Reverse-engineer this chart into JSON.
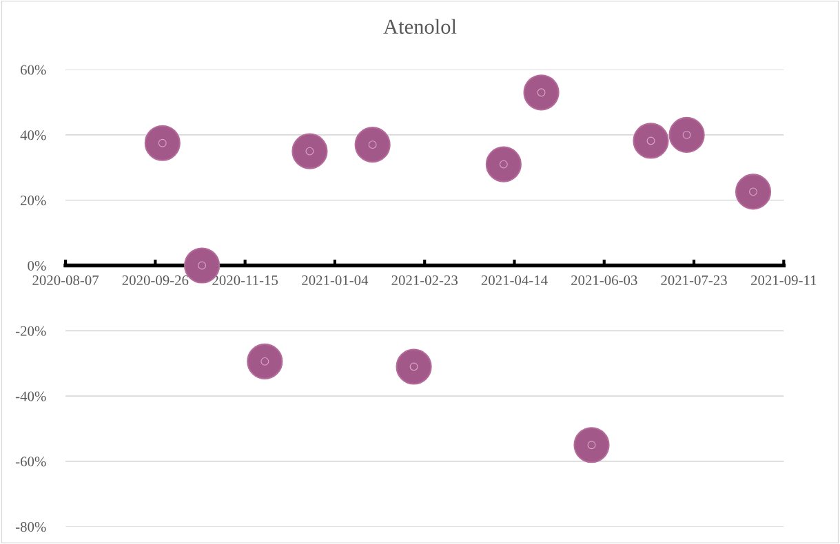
{
  "chart_data": {
    "type": "scatter",
    "title": "Atenolol",
    "x": [
      "2020-09-30",
      "2020-10-22",
      "2020-11-26",
      "2020-12-21",
      "2021-01-25",
      "2021-02-17",
      "2021-04-08",
      "2021-04-29",
      "2021-05-27",
      "2021-06-29",
      "2021-07-19",
      "2021-08-25"
    ],
    "series": [
      {
        "color": "#a3588a",
        "values": [
          37.5,
          0,
          -29.4,
          35,
          37,
          -31,
          31,
          53,
          -55,
          38.2,
          40,
          22.6
        ]
      }
    ],
    "xlim": [
      "2020-08-07",
      "2021-09-11"
    ],
    "xticks": [
      "2020-08-07",
      "2020-09-26",
      "2020-11-15",
      "2021-01-04",
      "2021-02-23",
      "2021-04-14",
      "2021-06-03",
      "2021-07-23",
      "2021-09-11"
    ],
    "ylim": [
      -80,
      60
    ],
    "yticks": [
      {
        "value": -80,
        "label": "-80%"
      },
      {
        "value": -60,
        "label": "-60%"
      },
      {
        "value": -40,
        "label": "-40%"
      },
      {
        "value": -20,
        "label": "-20%"
      },
      {
        "value": 0,
        "label": "0%"
      },
      {
        "value": 20,
        "label": "20%"
      },
      {
        "value": 40,
        "label": "40%"
      },
      {
        "value": 60,
        "label": "60%"
      }
    ],
    "grid": "y",
    "marker": "circle",
    "legend": false
  }
}
